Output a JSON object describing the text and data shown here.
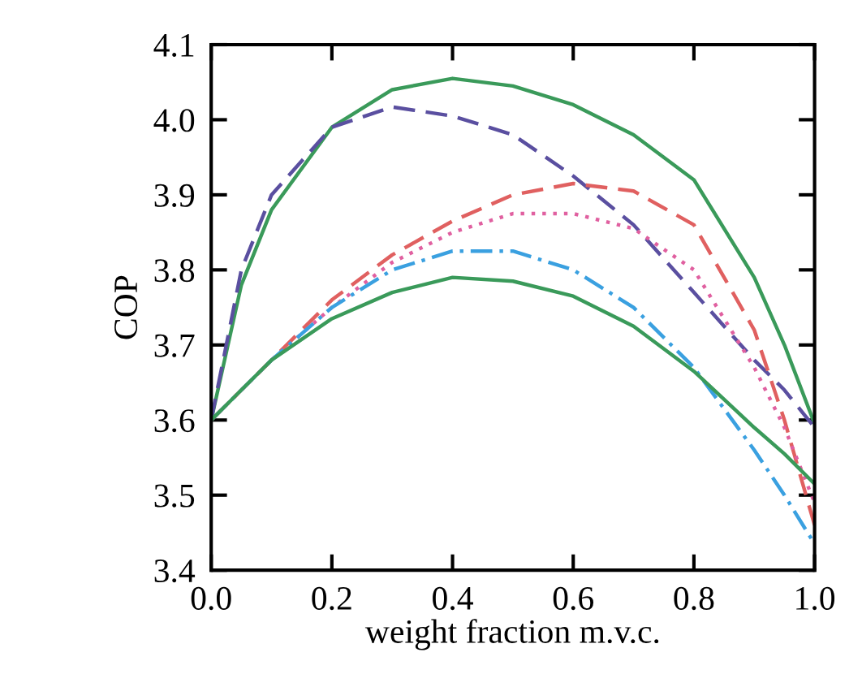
{
  "chart_data": {
    "type": "line",
    "xlabel": "weight fraction m.v.c.",
    "ylabel": "COP",
    "xlim": [
      0,
      1
    ],
    "ylim": [
      3.4,
      4.1
    ],
    "xticks": [
      {
        "value": 0,
        "label": "0.0"
      },
      0.2,
      0.4,
      0.6,
      0.8,
      {
        "value": 1,
        "label": "1.0"
      }
    ],
    "yticks": [
      3.4,
      3.5,
      3.6,
      3.7,
      3.8,
      3.9,
      {
        "value": 4,
        "label": "4.0"
      },
      4.1
    ],
    "x": [
      0,
      0.05,
      0.1,
      0.2,
      0.3,
      0.4,
      0.5,
      0.6,
      0.7,
      0.8,
      0.9,
      0.95,
      1.0
    ],
    "grid": false,
    "series": [
      {
        "color": "#3a9a5a",
        "line_style": "solid",
        "values": [
          3.6,
          3.78,
          3.88,
          3.99,
          4.04,
          4.055,
          4.045,
          4.02,
          3.98,
          3.92,
          3.79,
          3.7,
          3.595
        ]
      },
      {
        "color": "#5a4fa0",
        "line_style": "dashed",
        "values": [
          3.6,
          3.8,
          3.9,
          3.99,
          4.017,
          4.005,
          3.98,
          3.925,
          3.86,
          3.77,
          3.68,
          3.64,
          3.59
        ]
      },
      {
        "color": "#e06060",
        "line_style": "dashed",
        "values": [
          3.6,
          3.64,
          3.68,
          3.76,
          3.82,
          3.865,
          3.9,
          3.915,
          3.905,
          3.86,
          3.72,
          3.6,
          3.46
        ]
      },
      {
        "color": "#e060a0",
        "line_style": "dotted",
        "values": [
          3.6,
          3.64,
          3.68,
          3.75,
          3.81,
          3.85,
          3.875,
          3.875,
          3.855,
          3.8,
          3.67,
          3.59,
          3.49
        ]
      },
      {
        "color": "#3aa0e0",
        "line_style": "dashdot",
        "values": [
          3.6,
          3.64,
          3.68,
          3.75,
          3.8,
          3.825,
          3.825,
          3.8,
          3.75,
          3.67,
          3.56,
          3.5,
          3.435
        ]
      },
      {
        "color": "#3a9a5a",
        "line_style": "solid",
        "values": [
          3.6,
          3.64,
          3.68,
          3.735,
          3.77,
          3.79,
          3.785,
          3.765,
          3.725,
          3.665,
          3.59,
          3.555,
          3.515
        ]
      }
    ]
  }
}
